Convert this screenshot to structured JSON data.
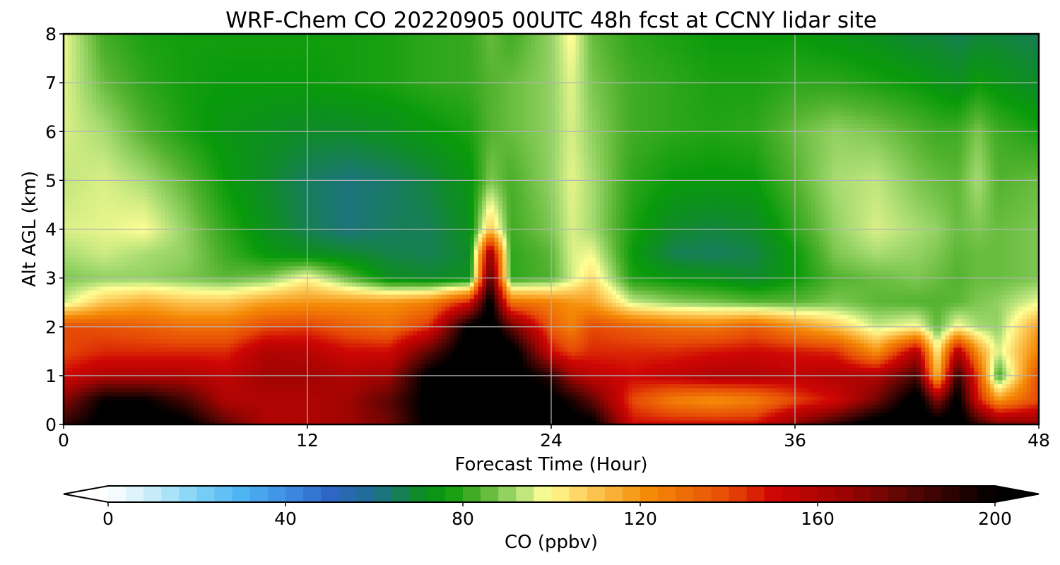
{
  "chart_data": {
    "type": "heatmap",
    "title": "WRF-Chem CO  20220905 00UTC 48h fcst at CCNY lidar site",
    "xlabel": "Forecast Time (Hour)",
    "ylabel": "Alt AGL (km)",
    "x_ticks": [
      "0",
      "12",
      "24",
      "36",
      "48"
    ],
    "y_ticks": [
      "0",
      "1",
      "2",
      "3",
      "4",
      "5",
      "6",
      "7",
      "8"
    ],
    "xlim": [
      0,
      48
    ],
    "ylim": [
      0,
      8
    ],
    "grid": true,
    "colorbar": {
      "label": "CO  (ppbv)",
      "ticks": [
        "0",
        "40",
        "80",
        "120",
        "160",
        "200"
      ],
      "range": [
        0,
        200
      ],
      "extend": "both",
      "stops": [
        {
          "value": 0,
          "color": "#ffffff"
        },
        {
          "value": 10,
          "color": "#c6ecfa"
        },
        {
          "value": 20,
          "color": "#7fd2f6"
        },
        {
          "value": 30,
          "color": "#4fb4f2"
        },
        {
          "value": 40,
          "color": "#3f8ee6"
        },
        {
          "value": 50,
          "color": "#2f66c6"
        },
        {
          "value": 60,
          "color": "#1f6e90"
        },
        {
          "value": 70,
          "color": "#0f8a2a"
        },
        {
          "value": 76,
          "color": "#089a0a"
        },
        {
          "value": 84,
          "color": "#52b22e"
        },
        {
          "value": 92,
          "color": "#a8dc72"
        },
        {
          "value": 99,
          "color": "#ffff96"
        },
        {
          "value": 110,
          "color": "#fcc24e"
        },
        {
          "value": 122,
          "color": "#f58a06"
        },
        {
          "value": 140,
          "color": "#e64a06"
        },
        {
          "value": 150,
          "color": "#ce0604"
        },
        {
          "value": 165,
          "color": "#a00402"
        },
        {
          "value": 180,
          "color": "#5a0604"
        },
        {
          "value": 200,
          "color": "#000000"
        }
      ]
    },
    "x": [
      0,
      2,
      4,
      6,
      8,
      10,
      12,
      14,
      16,
      18,
      20,
      21,
      22,
      24,
      25,
      26,
      28,
      30,
      32,
      34,
      36,
      38,
      40,
      42,
      43,
      44,
      45,
      46,
      48
    ],
    "y": [
      0,
      0.5,
      1,
      1.5,
      2,
      2.5,
      3,
      3.5,
      4,
      5,
      6,
      7,
      8
    ],
    "z": [
      [
        190,
        205,
        205,
        205,
        180,
        160,
        160,
        165,
        175,
        205,
        205,
        205,
        205,
        205,
        205,
        205,
        150,
        150,
        150,
        150,
        170,
        190,
        210,
        210,
        210,
        210,
        190,
        175,
        170
      ],
      [
        170,
        200,
        200,
        185,
        160,
        160,
        160,
        165,
        180,
        205,
        210,
        210,
        210,
        205,
        195,
        180,
        140,
        125,
        120,
        125,
        140,
        150,
        175,
        210,
        170,
        205,
        150,
        120,
        140
      ],
      [
        150,
        160,
        160,
        160,
        155,
        165,
        165,
        160,
        165,
        205,
        210,
        210,
        210,
        190,
        165,
        155,
        150,
        155,
        160,
        160,
        155,
        160,
        160,
        185,
        110,
        190,
        140,
        80,
        140
      ],
      [
        140,
        145,
        145,
        145,
        145,
        160,
        158,
        150,
        150,
        180,
        210,
        210,
        210,
        150,
        140,
        145,
        145,
        145,
        148,
        150,
        148,
        145,
        120,
        160,
        100,
        160,
        120,
        95,
        125
      ],
      [
        140,
        138,
        135,
        130,
        130,
        140,
        142,
        135,
        130,
        145,
        205,
        210,
        180,
        135,
        125,
        140,
        135,
        130,
        128,
        135,
        122,
        110,
        95,
        100,
        85,
        100,
        92,
        90,
        118
      ],
      [
        95,
        110,
        115,
        110,
        110,
        118,
        120,
        120,
        120,
        125,
        150,
        205,
        130,
        125,
        120,
        118,
        95,
        90,
        88,
        85,
        85,
        88,
        85,
        84,
        84,
        85,
        88,
        90,
        98
      ],
      [
        88,
        90,
        90,
        88,
        85,
        88,
        100,
        85,
        72,
        70,
        72,
        185,
        80,
        84,
        95,
        105,
        78,
        75,
        73,
        70,
        76,
        84,
        86,
        88,
        86,
        84,
        86,
        86,
        88
      ],
      [
        92,
        95,
        92,
        90,
        82,
        75,
        72,
        70,
        67,
        66,
        70,
        170,
        80,
        85,
        96,
        98,
        76,
        66,
        65,
        67,
        76,
        88,
        92,
        90,
        88,
        85,
        86,
        86,
        88
      ],
      [
        96,
        97,
        99,
        90,
        80,
        72,
        66,
        62,
        65,
        66,
        72,
        110,
        82,
        88,
        96,
        92,
        78,
        70,
        68,
        70,
        80,
        90,
        96,
        92,
        90,
        86,
        88,
        86,
        88
      ],
      [
        94,
        96,
        92,
        85,
        76,
        70,
        65,
        62,
        64,
        68,
        74,
        88,
        83,
        90,
        97,
        92,
        80,
        76,
        75,
        76,
        84,
        92,
        94,
        88,
        86,
        85,
        92,
        84,
        86
      ],
      [
        96,
        92,
        84,
        78,
        74,
        72,
        70,
        70,
        72,
        75,
        78,
        84,
        86,
        90,
        96,
        90,
        82,
        80,
        79,
        80,
        86,
        90,
        88,
        84,
        82,
        82,
        88,
        82,
        78
      ],
      [
        97,
        86,
        80,
        77,
        76,
        76,
        76,
        77,
        78,
        80,
        81,
        84,
        86,
        90,
        97,
        88,
        82,
        80,
        78,
        78,
        80,
        80,
        78,
        76,
        74,
        72,
        76,
        74,
        70
      ],
      [
        98,
        82,
        78,
        77,
        77,
        77,
        77,
        77,
        78,
        80,
        81,
        86,
        82,
        90,
        100,
        86,
        80,
        78,
        76,
        76,
        76,
        74,
        72,
        68,
        68,
        66,
        68,
        68,
        66
      ]
    ]
  }
}
